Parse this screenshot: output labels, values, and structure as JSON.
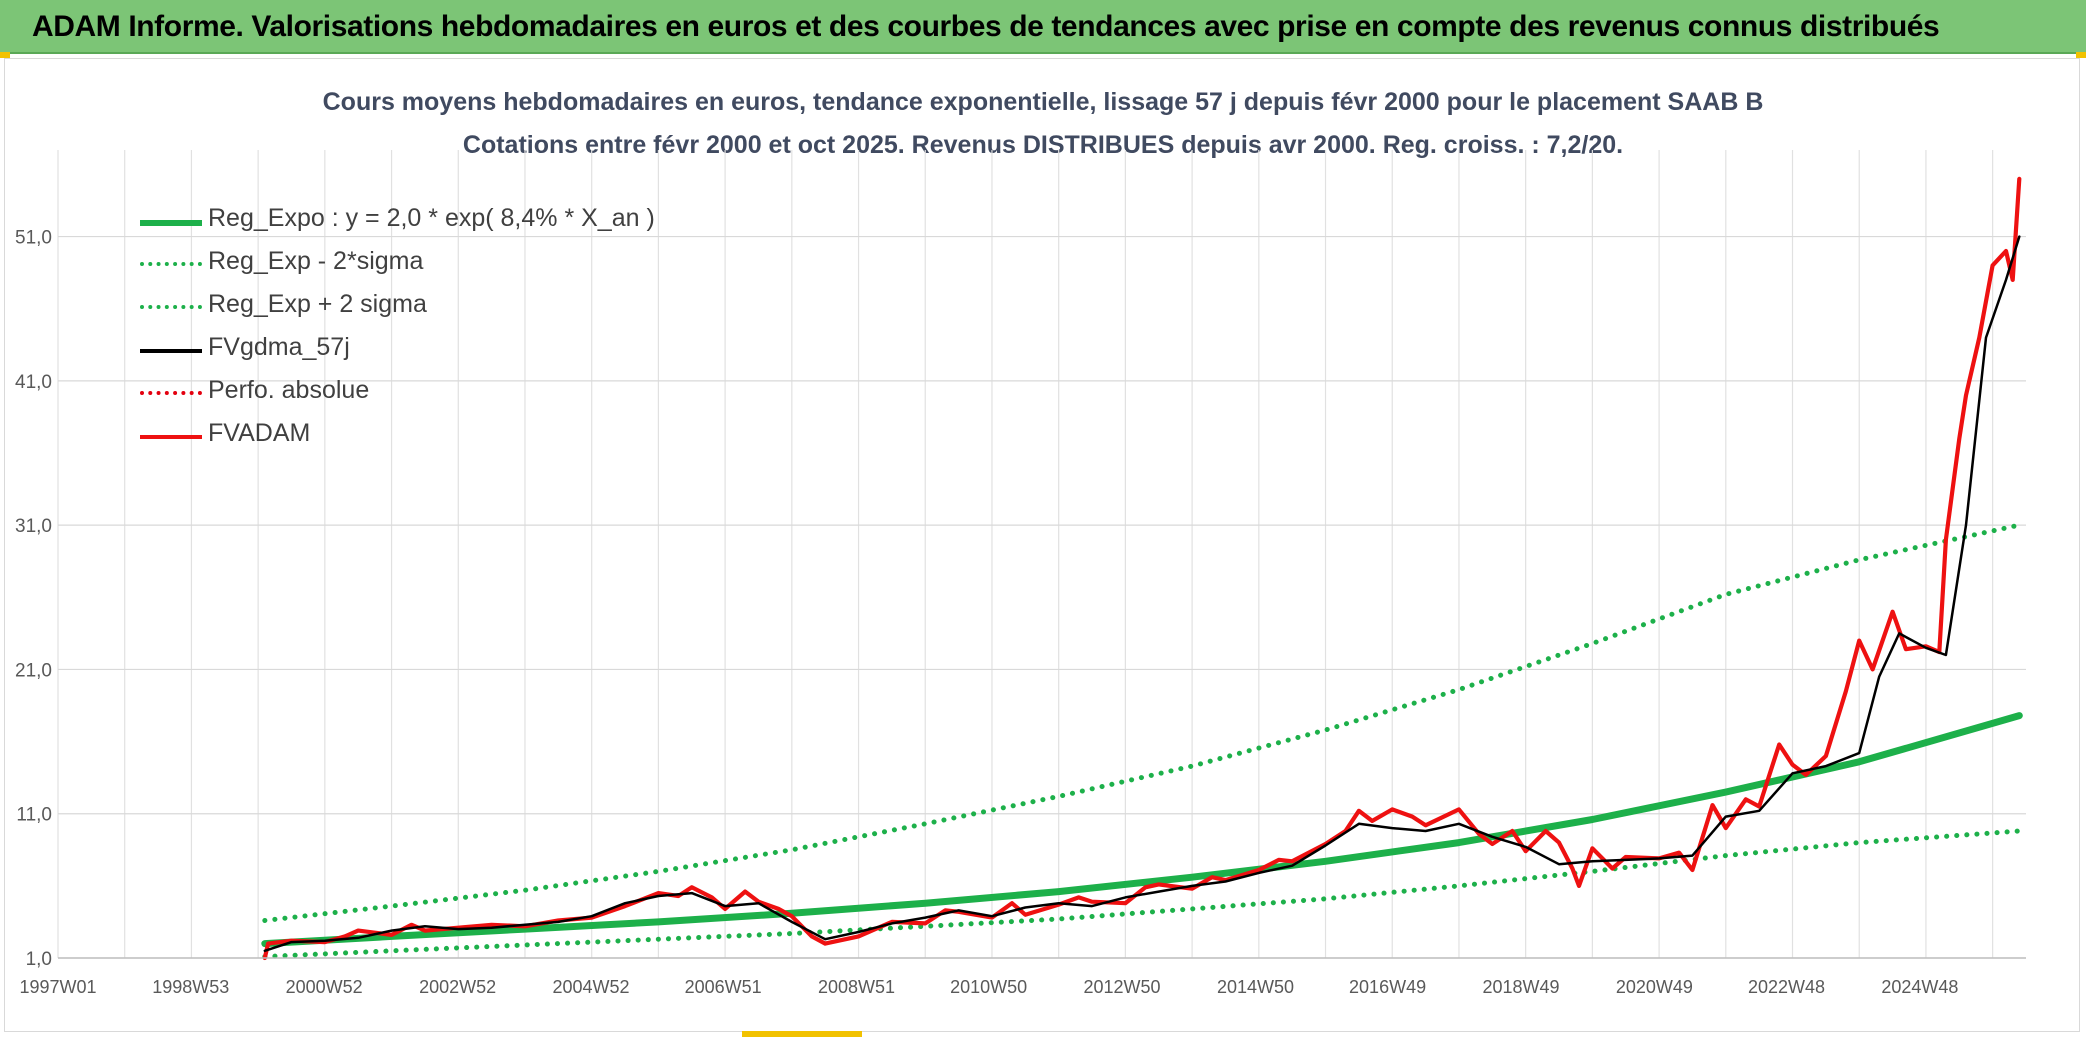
{
  "banner": {
    "title": "ADAM Informe. Valorisations hebdomadaires en euros et des courbes de tendances avec prise en compte des revenus connus distribués",
    "color": "#7cc576"
  },
  "chart_data": {
    "type": "line",
    "title": "Cours moyens hebdomadaires en euros, tendance exponentielle, lissage 57 j depuis févr 2000 pour le placement SAAB B",
    "subtitle": "Cotations entre févr 2000 et oct 2025. Revenus DISTRIBUES depuis avr 2000. Reg. croiss. : 7,2/20.",
    "xlabel": "",
    "ylabel": "",
    "x_range": [
      1997.0,
      2026.5
    ],
    "ylim": [
      1.0,
      57.0
    ],
    "y_ticks": [
      "1,0",
      "11,0",
      "21,0",
      "31,0",
      "41,0",
      "51,0"
    ],
    "x_ticks": [
      {
        "year": 1997.0,
        "label": "1997W01"
      },
      {
        "year": 1998.99,
        "label": "1998W53"
      },
      {
        "year": 2000.99,
        "label": "2000W52"
      },
      {
        "year": 2002.99,
        "label": "2002W52"
      },
      {
        "year": 2004.99,
        "label": "2004W52"
      },
      {
        "year": 2006.97,
        "label": "2006W51"
      },
      {
        "year": 2008.97,
        "label": "2008W51"
      },
      {
        "year": 2010.95,
        "label": "2010W50"
      },
      {
        "year": 2012.95,
        "label": "2012W50"
      },
      {
        "year": 2014.95,
        "label": "2014W50"
      },
      {
        "year": 2016.93,
        "label": "2016W49"
      },
      {
        "year": 2018.93,
        "label": "2018W49"
      },
      {
        "year": 2020.93,
        "label": "2020W49"
      },
      {
        "year": 2022.91,
        "label": "2022W48"
      },
      {
        "year": 2024.91,
        "label": "2024W48"
      }
    ],
    "grid": true,
    "legend_position": "top-left",
    "series": [
      {
        "name": "Reg_Expo : y = 2,0 * exp( 8,4% *  X_an )",
        "color": "#1db04a",
        "style": "solid",
        "x": [
          2000.1,
          2002,
          2004,
          2006,
          2008,
          2010,
          2012,
          2014,
          2016,
          2018,
          2020,
          2022,
          2024,
          2026.4
        ],
        "y": [
          2.0,
          2.5,
          3.0,
          3.5,
          4.1,
          4.8,
          5.6,
          6.6,
          7.7,
          9.0,
          10.6,
          12.5,
          14.6,
          17.8
        ]
      },
      {
        "name": "Reg_Exp - 2*sigma",
        "color": "#1db04a",
        "style": "dotted",
        "x": [
          2000.1,
          2002,
          2004,
          2006,
          2008,
          2010,
          2012,
          2014,
          2016,
          2018,
          2020,
          2022,
          2024,
          2026.4
        ],
        "y": [
          1.1,
          1.5,
          1.9,
          2.3,
          2.7,
          3.2,
          3.7,
          4.4,
          5.1,
          6.0,
          7.0,
          8.1,
          9.0,
          9.8
        ]
      },
      {
        "name": "Reg_Exp + 2 sigma",
        "color": "#1db04a",
        "style": "dotted",
        "x": [
          2000.1,
          2002,
          2004,
          2006,
          2008,
          2010,
          2012,
          2014,
          2016,
          2018,
          2020,
          2022,
          2024,
          2026.4
        ],
        "y": [
          3.6,
          4.6,
          5.7,
          7.0,
          8.5,
          10.3,
          12.2,
          14.3,
          16.8,
          19.6,
          22.8,
          26.2,
          28.6,
          31.0
        ]
      },
      {
        "name": "FVgdma_57j",
        "color": "#000000",
        "style": "solid",
        "x": [
          2000.1,
          2000.5,
          2001,
          2001.5,
          2002,
          2002.5,
          2003,
          2003.5,
          2004,
          2004.5,
          2005,
          2005.5,
          2006,
          2006.5,
          2007,
          2007.5,
          2008,
          2008.5,
          2009,
          2009.5,
          2010,
          2010.5,
          2011,
          2011.5,
          2012,
          2012.5,
          2013,
          2013.5,
          2014,
          2014.5,
          2015,
          2015.5,
          2016,
          2016.5,
          2017,
          2017.5,
          2018,
          2018.5,
          2019,
          2019.5,
          2020,
          2020.5,
          2021,
          2021.5,
          2022,
          2022.5,
          2023,
          2023.5,
          2024,
          2024.3,
          2024.6,
          2025,
          2025.3,
          2025.6,
          2025.9,
          2026.2,
          2026.4
        ],
        "y": [
          1.5,
          2.1,
          2.2,
          2.4,
          2.9,
          3.2,
          3.0,
          3.1,
          3.3,
          3.5,
          3.9,
          4.8,
          5.3,
          5.5,
          4.6,
          4.8,
          3.5,
          2.3,
          2.8,
          3.4,
          3.8,
          4.3,
          3.9,
          4.5,
          4.8,
          4.6,
          5.2,
          5.6,
          6.0,
          6.3,
          6.9,
          7.4,
          8.8,
          10.3,
          10.0,
          9.8,
          10.3,
          9.4,
          8.7,
          7.5,
          7.7,
          7.8,
          7.9,
          8.1,
          10.8,
          11.2,
          13.8,
          14.3,
          15.2,
          20.5,
          23.5,
          22.5,
          22.0,
          31.0,
          44.0,
          48.0,
          51.0
        ]
      },
      {
        "name": "Perfo. absolue",
        "color": "#e3000f",
        "style": "dotted",
        "x": [],
        "y": []
      },
      {
        "name": "FVADAM",
        "color": "#ee1111",
        "style": "solid",
        "x": [
          2000.1,
          2000.15,
          2000.5,
          2001,
          2001.3,
          2001.5,
          2002,
          2002.3,
          2002.5,
          2003,
          2003.5,
          2004,
          2004.5,
          2005,
          2005.5,
          2006,
          2006.3,
          2006.5,
          2006.8,
          2007,
          2007.3,
          2007.5,
          2007.8,
          2008,
          2008.3,
          2008.5,
          2009,
          2009.5,
          2010,
          2010.3,
          2010.5,
          2011,
          2011.3,
          2011.5,
          2012,
          2012.3,
          2012.5,
          2013,
          2013.3,
          2013.5,
          2014,
          2014.3,
          2014.5,
          2015,
          2015.3,
          2015.5,
          2016,
          2016.3,
          2016.5,
          2016.7,
          2017,
          2017.3,
          2017.5,
          2018,
          2018.3,
          2018.5,
          2018.8,
          2019,
          2019.3,
          2019.5,
          2019.7,
          2019.8,
          2020,
          2020.3,
          2020.5,
          2021,
          2021.3,
          2021.5,
          2021.8,
          2022,
          2022.3,
          2022.5,
          2022.8,
          2023,
          2023.2,
          2023.5,
          2023.8,
          2024,
          2024.2,
          2024.5,
          2024.7,
          2025,
          2025.2,
          2025.3,
          2025.5,
          2025.6,
          2025.8,
          2026,
          2026.2,
          2026.3,
          2026.4
        ],
        "y": [
          1.0,
          2.0,
          2.2,
          2.1,
          2.5,
          2.9,
          2.6,
          3.3,
          2.9,
          3.1,
          3.3,
          3.2,
          3.6,
          3.8,
          4.6,
          5.5,
          5.3,
          5.9,
          5.2,
          4.4,
          5.6,
          4.9,
          4.4,
          3.9,
          2.5,
          2.0,
          2.5,
          3.5,
          3.4,
          4.3,
          4.2,
          3.8,
          4.8,
          4.0,
          4.7,
          5.2,
          4.9,
          4.8,
          5.9,
          6.1,
          5.8,
          6.6,
          6.4,
          7.1,
          7.8,
          7.7,
          8.9,
          9.8,
          11.2,
          10.5,
          11.3,
          10.8,
          10.2,
          11.3,
          9.6,
          8.9,
          9.8,
          8.4,
          9.8,
          9.0,
          7.2,
          6.0,
          8.6,
          7.2,
          8.0,
          7.9,
          8.3,
          7.1,
          11.6,
          10.0,
          12.0,
          11.5,
          15.8,
          14.4,
          13.7,
          15.0,
          19.5,
          23.0,
          21.0,
          25.0,
          22.4,
          22.6,
          22.2,
          30.0,
          37.0,
          40.0,
          44.0,
          49.0,
          50.0,
          48.0,
          55.0
        ]
      }
    ]
  }
}
